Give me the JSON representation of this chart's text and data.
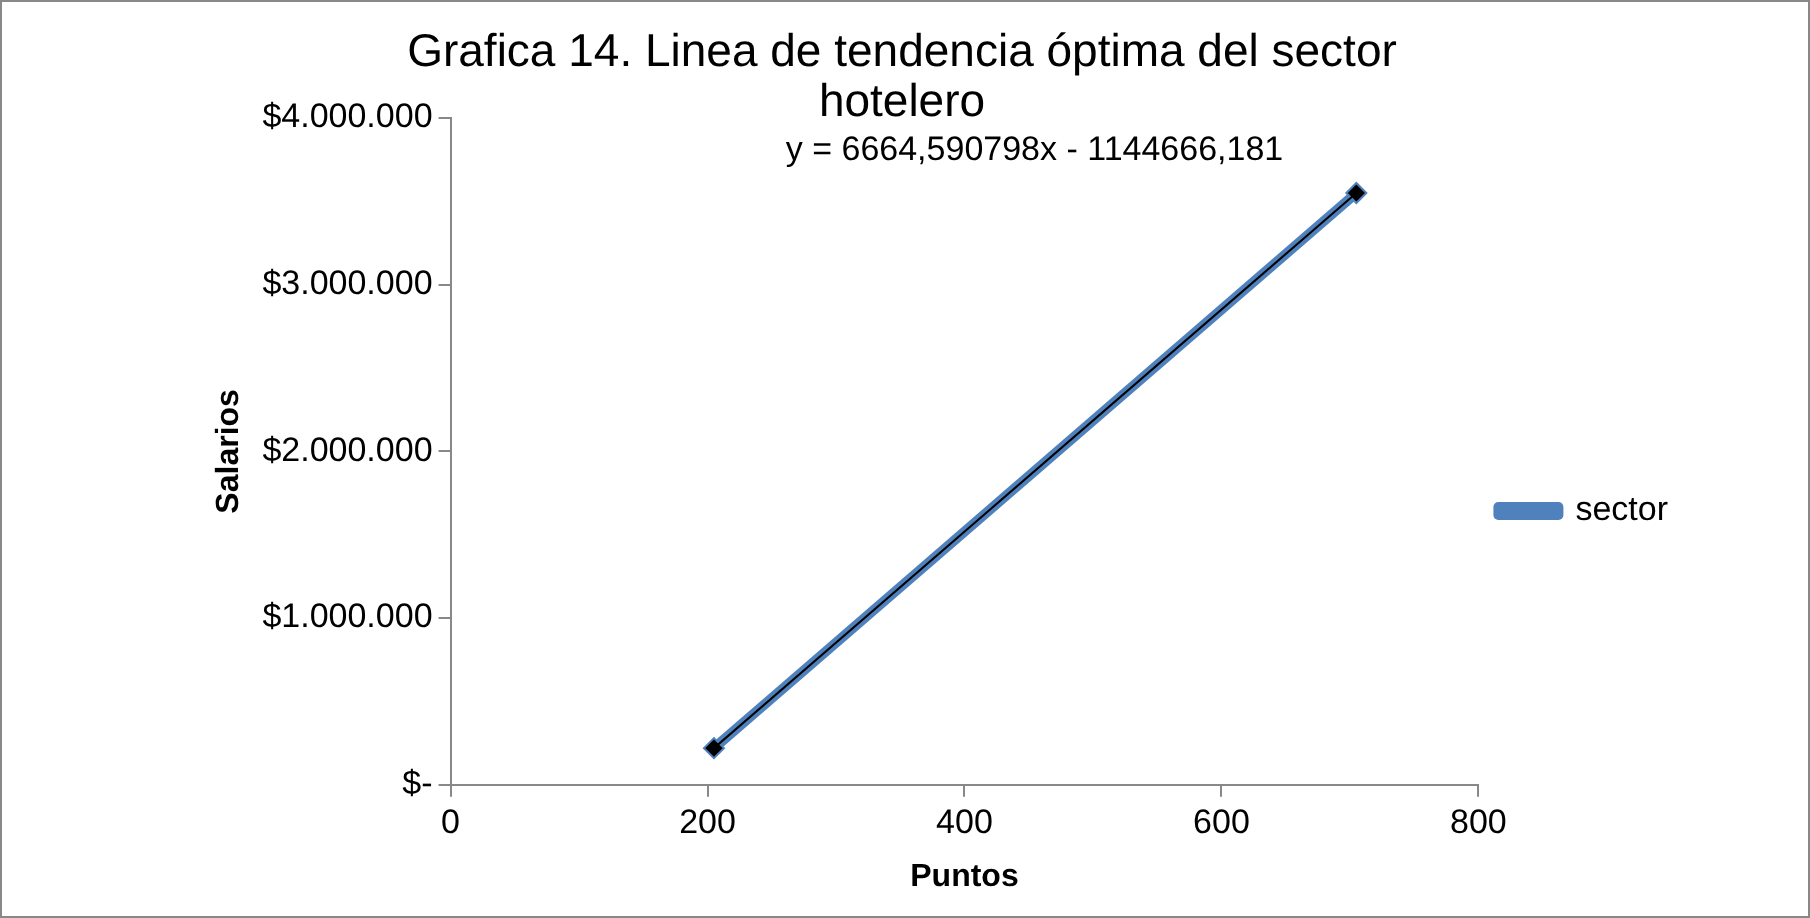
{
  "chart_data": {
    "type": "line",
    "title": "Grafica 14. Linea de tendencia óptima del sector hotelero",
    "xlabel": "Puntos",
    "ylabel": "Salarios",
    "annotations": [
      "y = 6664,590798x - 1144666,181"
    ],
    "series": [
      {
        "name": "sector",
        "color": "#4f81bd",
        "values": [
          220000,
          3550000
        ],
        "marker": "diamond"
      },
      {
        "type": "line",
        "color": "#000000",
        "values": [
          220000,
          3550000
        ],
        "marker": "none"
      }
    ],
    "x": [
      205,
      705
    ],
    "xlim": [
      0,
      800
    ],
    "xticks": [
      0,
      200,
      400,
      600,
      800
    ],
    "ylim": [
      0,
      4000000
    ],
    "yticks": [
      {
        "value": 0,
        "label": "$-"
      },
      {
        "value": 1000000,
        "label": "$1.000.000"
      },
      {
        "value": 2000000,
        "label": "$2.000.000"
      },
      {
        "value": 3000000,
        "label": "$3.000.000"
      },
      {
        "value": 4000000,
        "label": "$4.000.000"
      }
    ],
    "grid": false,
    "legend": "right"
  }
}
